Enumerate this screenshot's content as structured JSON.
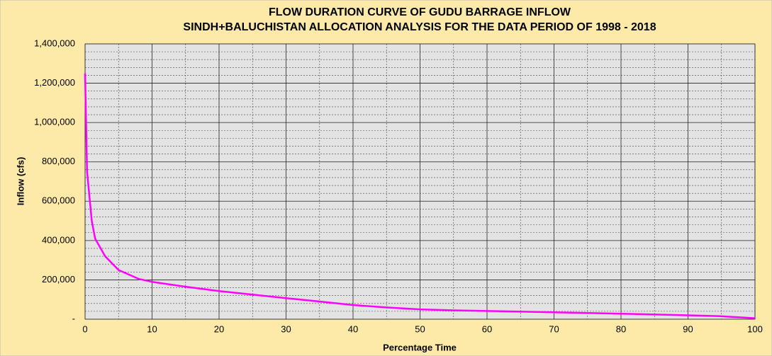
{
  "chart_data": {
    "type": "line",
    "title": "FLOW DURATION CURVE OF GUDU BARRAGE INFLOW",
    "subtitle": "SINDH+BALUCHISTAN ALLOCATION ANALYSIS FOR THE DATA PERIOD OF 1998 - 2018",
    "x_label": "Percentage Time",
    "y_label": "Inflow (cfs)",
    "x": [
      0,
      0.3,
      1,
      1.5,
      3,
      5,
      8,
      10,
      15,
      20,
      25,
      30,
      35,
      40,
      45,
      50,
      55,
      60,
      70,
      80,
      90,
      95,
      100
    ],
    "series": [
      {
        "name": "Inflow",
        "color": "#ff00ff",
        "values": [
          1250000,
          750000,
          500000,
          410000,
          320000,
          250000,
          205000,
          190000,
          165000,
          143000,
          125000,
          107000,
          90000,
          72000,
          60000,
          50000,
          45000,
          42000,
          35000,
          28000,
          20000,
          15000,
          5000
        ]
      }
    ],
    "xlim": [
      0,
      100
    ],
    "xticks": [
      0,
      10,
      20,
      30,
      40,
      50,
      60,
      70,
      80,
      90,
      100
    ],
    "x_minor_ticks": [
      5,
      15,
      25,
      35,
      45,
      55,
      65,
      75,
      85,
      95
    ],
    "ylim": [
      0,
      1400000
    ],
    "yticks": [
      {
        "value": 0,
        "label": "-"
      },
      {
        "value": 200000,
        "label": "200,000"
      },
      {
        "value": 400000,
        "label": "400,000"
      },
      {
        "value": 600000,
        "label": "600,000"
      },
      {
        "value": 800000,
        "label": "800,000"
      },
      {
        "value": 1000000,
        "label": "1,000,000"
      },
      {
        "value": 1200000,
        "label": "1,200,000"
      },
      {
        "value": 1400000,
        "label": "1,400,000"
      }
    ],
    "y_minor_ticks": [
      40000,
      80000,
      120000,
      160000,
      240000,
      280000,
      320000,
      360000,
      440000,
      480000,
      520000,
      560000,
      640000,
      680000,
      720000,
      760000,
      840000,
      880000,
      920000,
      960000,
      1040000,
      1080000,
      1120000,
      1160000,
      1240000,
      1280000,
      1320000,
      1360000
    ],
    "grid": true
  }
}
